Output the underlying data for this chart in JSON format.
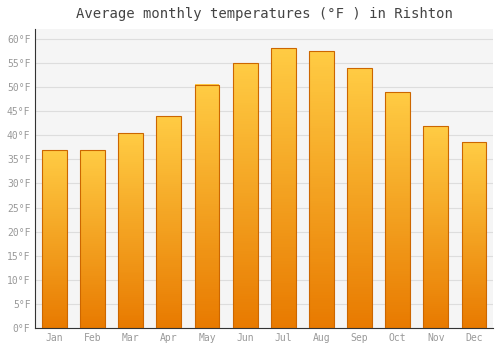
{
  "title": "Average monthly temperatures (°F ) in Rishton",
  "months": [
    "Jan",
    "Feb",
    "Mar",
    "Apr",
    "May",
    "Jun",
    "Jul",
    "Aug",
    "Sep",
    "Oct",
    "Nov",
    "Dec"
  ],
  "values": [
    37,
    37,
    40.5,
    44,
    50.5,
    55,
    58,
    57.5,
    54,
    49,
    42,
    38.5
  ],
  "bar_color_bottom": "#E87A00",
  "bar_color_top": "#FFCC44",
  "bar_edge_color": "#CC6600",
  "background_color": "#FFFFFF",
  "plot_bg_color": "#F5F5F5",
  "grid_color": "#DDDDDD",
  "ylim": [
    0,
    62
  ],
  "yticks": [
    0,
    5,
    10,
    15,
    20,
    25,
    30,
    35,
    40,
    45,
    50,
    55,
    60
  ],
  "tick_label_color": "#999999",
  "title_color": "#444444",
  "title_fontsize": 10,
  "bar_width": 0.65
}
